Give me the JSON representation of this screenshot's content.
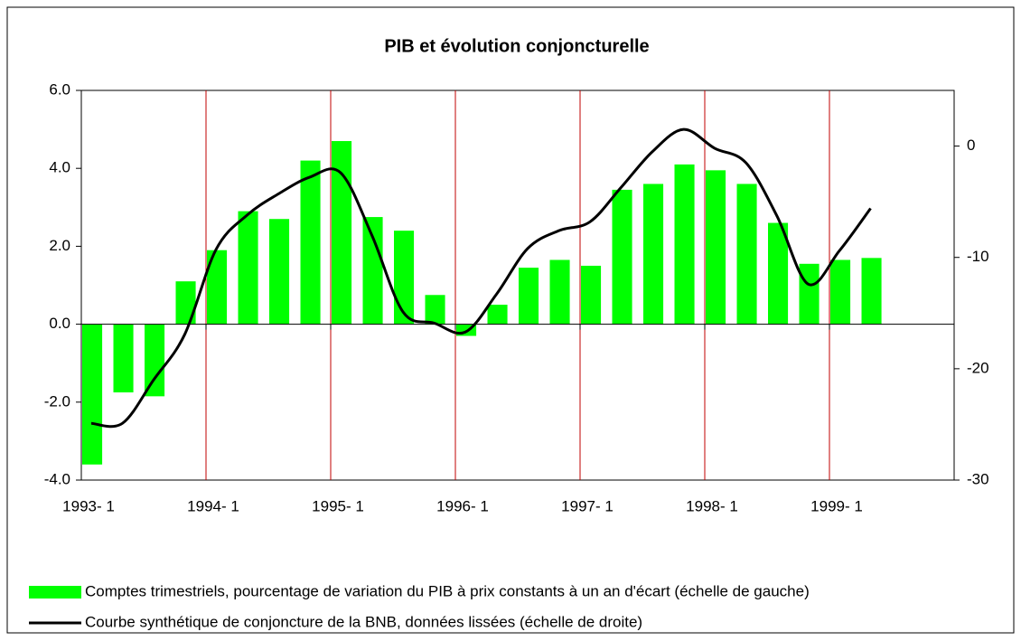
{
  "chart_data": {
    "type": "bar-line",
    "title": "PIB et évolution conjoncturelle",
    "categories": [
      "1993- 1",
      null,
      null,
      null,
      "1994- 1",
      null,
      null,
      null,
      "1995- 1",
      null,
      null,
      null,
      "1996- 1",
      null,
      null,
      null,
      "1997- 1",
      null,
      null,
      null,
      "1998- 1",
      null,
      null,
      null,
      "1999- 1",
      null,
      null,
      null
    ],
    "series": [
      {
        "name": "Comptes trimestriels, pourcentage de variation du PIB à prix constants à un an d'écart (échelle de gauche)",
        "color": "#00ff00",
        "kind": "bar",
        "values": [
          -3.6,
          -1.75,
          -1.85,
          1.1,
          1.9,
          2.9,
          2.7,
          4.2,
          4.7,
          2.75,
          2.4,
          0.75,
          -0.3,
          0.5,
          1.45,
          1.65,
          1.5,
          3.45,
          3.6,
          4.1,
          3.95,
          3.6,
          2.6,
          1.55,
          1.65,
          1.7,
          null,
          null
        ]
      },
      {
        "name": "Courbe synthétique de conjoncture de la BNB, données lissées (échelle de droite)",
        "color": "#000000",
        "kind": "line",
        "axis": "y2",
        "values": [
          -24.9,
          -24.9,
          -21.0,
          -16.9,
          -9.3,
          -6.2,
          -4.3,
          -2.8,
          -2.4,
          -8.0,
          -14.9,
          -15.9,
          -16.7,
          -13.3,
          -9.2,
          -7.6,
          -6.8,
          -3.7,
          -0.5,
          1.5,
          -0.2,
          -1.5,
          -6.3,
          -12.4,
          -9.4,
          -5.6,
          null,
          null
        ]
      }
    ],
    "ylim": [
      -4,
      6
    ],
    "yticks": [
      {
        "value": -4,
        "label": "-4.0"
      },
      {
        "value": -2,
        "label": "-2.0"
      },
      {
        "value": 0,
        "label": "0.0"
      },
      {
        "value": 2,
        "label": "2.0"
      },
      {
        "value": 4,
        "label": "4.0"
      },
      {
        "value": 6,
        "label": "6.0"
      }
    ],
    "y2lim": [
      -30,
      5
    ],
    "y2ticks": [
      -30,
      -20,
      -10,
      0
    ],
    "grid": true,
    "grid_color": "#c00000",
    "legend": "bottom"
  }
}
